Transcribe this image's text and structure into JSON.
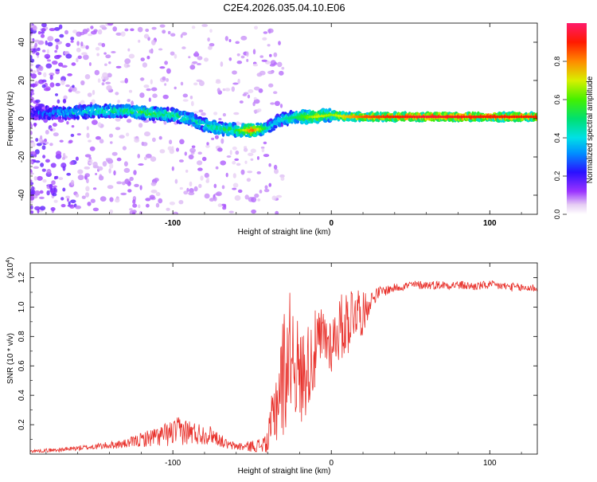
{
  "title": "C2E4.2026.035.04.10.E06",
  "chart_data": [
    {
      "type": "heatmap",
      "name": "spectrogram",
      "xlabel": "Height of straight line (km)",
      "ylabel": "Frequency (Hz)",
      "xlim": [
        -190,
        130
      ],
      "ylim": [
        -50,
        50
      ],
      "x_ticks": [
        -100,
        0,
        100
      ],
      "x_tick_labels": [
        "-100",
        "0",
        "100"
      ],
      "y_ticks": [
        -40,
        -20,
        0,
        20,
        40
      ],
      "y_tick_labels": [
        "-40",
        "-20",
        "0",
        "20",
        "40"
      ],
      "ridge_x": [
        -190,
        -170,
        -150,
        -130,
        -115,
        -100,
        -90,
        -80,
        -70,
        -60,
        -50,
        -40,
        -35,
        -30,
        -20,
        -10,
        0,
        10,
        20,
        40,
        60,
        80,
        100,
        130
      ],
      "ridge_freq": [
        3,
        3,
        4,
        4,
        3,
        2,
        0,
        -3,
        -5,
        -6,
        -6,
        -5,
        -2,
        0,
        1,
        1,
        2,
        1,
        1,
        1,
        1,
        1,
        1,
        1
      ],
      "ridge_amplitude": [
        0.25,
        0.35,
        0.45,
        0.5,
        0.55,
        0.5,
        0.45,
        0.45,
        0.5,
        0.55,
        0.85,
        0.45,
        0.35,
        0.45,
        0.55,
        0.7,
        0.65,
        0.75,
        0.85,
        0.9,
        0.95,
        0.92,
        0.9,
        0.9
      ],
      "colorbar": {
        "label": "Normalized spectral amplitude",
        "range": [
          0,
          1
        ],
        "ticks": [
          0.0,
          0.2,
          0.4,
          0.6,
          0.8
        ],
        "tick_labels": [
          "0.0",
          "0.2",
          "0.4",
          "0.6",
          "0.8"
        ]
      }
    },
    {
      "type": "line",
      "name": "snr",
      "xlabel": "Height of straight line (km)",
      "ylabel": "SNR (10 * v/v)",
      "scale_label": "(x10",
      "scale_exponent": "4",
      "xlim": [
        -190,
        130
      ],
      "ylim": [
        0,
        1.3
      ],
      "x_ticks": [
        -100,
        0,
        100
      ],
      "x_tick_labels": [
        "-100",
        "0",
        "100"
      ],
      "y_ticks": [
        0.2,
        0.4,
        0.6,
        0.8,
        1.0,
        1.2
      ],
      "y_tick_labels": [
        "0.2",
        "0.4",
        "0.6",
        "0.8",
        "1.0",
        "1.2"
      ],
      "color": "#e8302a",
      "x": [
        -190,
        -170,
        -150,
        -130,
        -115,
        -105,
        -95,
        -85,
        -75,
        -65,
        -55,
        -45,
        -40,
        -35,
        -30,
        -25,
        -20,
        -15,
        -10,
        -5,
        0,
        5,
        10,
        15,
        20,
        25,
        30,
        40,
        50,
        60,
        70,
        80,
        90,
        100,
        110,
        120,
        130
      ],
      "y": [
        0.02,
        0.03,
        0.05,
        0.07,
        0.11,
        0.13,
        0.16,
        0.14,
        0.13,
        0.06,
        0.05,
        0.06,
        0.08,
        0.35,
        0.55,
        0.75,
        0.5,
        0.6,
        0.7,
        0.8,
        0.75,
        0.85,
        0.9,
        1.0,
        0.95,
        1.05,
        1.1,
        1.13,
        1.15,
        1.15,
        1.15,
        1.15,
        1.14,
        1.15,
        1.14,
        1.13,
        1.13
      ],
      "noise_amplitude": [
        0.01,
        0.015,
        0.02,
        0.03,
        0.06,
        0.08,
        0.1,
        0.08,
        0.06,
        0.03,
        0.03,
        0.05,
        0.1,
        0.3,
        0.45,
        0.4,
        0.35,
        0.3,
        0.28,
        0.22,
        0.2,
        0.22,
        0.25,
        0.2,
        0.15,
        0.06,
        0.04,
        0.03,
        0.03,
        0.03,
        0.03,
        0.03,
        0.03,
        0.03,
        0.03,
        0.03,
        0.03
      ]
    }
  ]
}
